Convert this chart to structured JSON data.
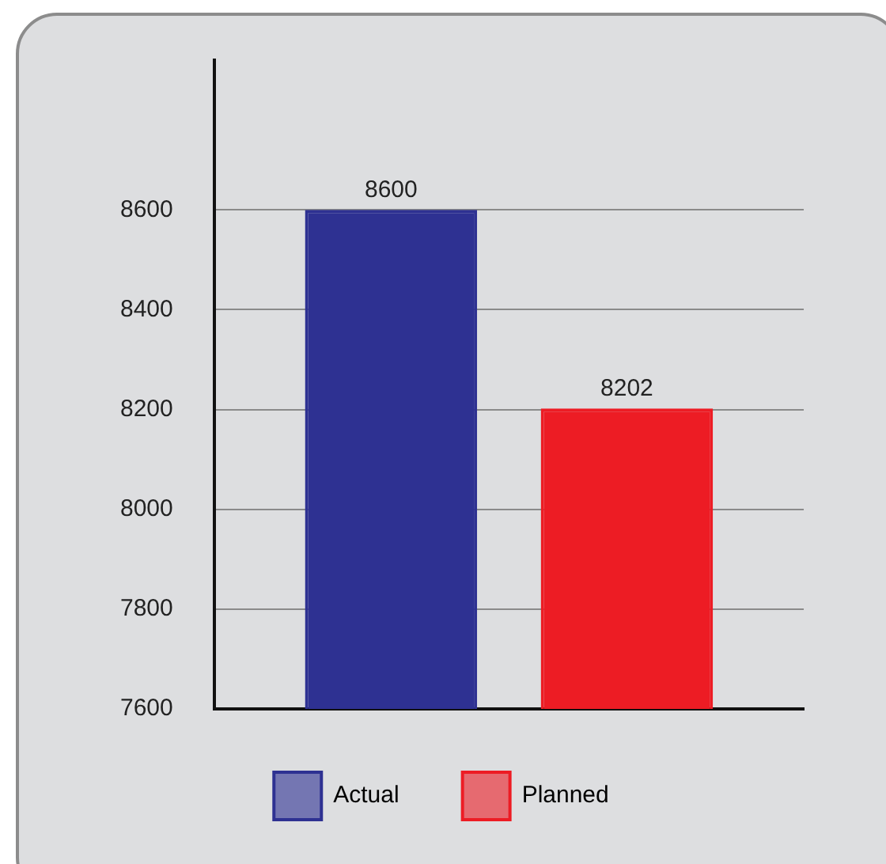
{
  "chart_data": {
    "type": "bar",
    "categories": [
      null
    ],
    "series": [
      {
        "name": "Actual",
        "color": "#2e3192",
        "values": [
          8600
        ]
      },
      {
        "name": "Planned",
        "color": "#ed1c24",
        "values": [
          8202
        ]
      }
    ],
    "ylim": [
      7600,
      8900
    ],
    "yticks": [
      7600,
      7800,
      8000,
      8200,
      8400,
      8600
    ],
    "grid": "y",
    "legend": "bottom",
    "data_labels": true,
    "tick_labels": "y"
  }
}
